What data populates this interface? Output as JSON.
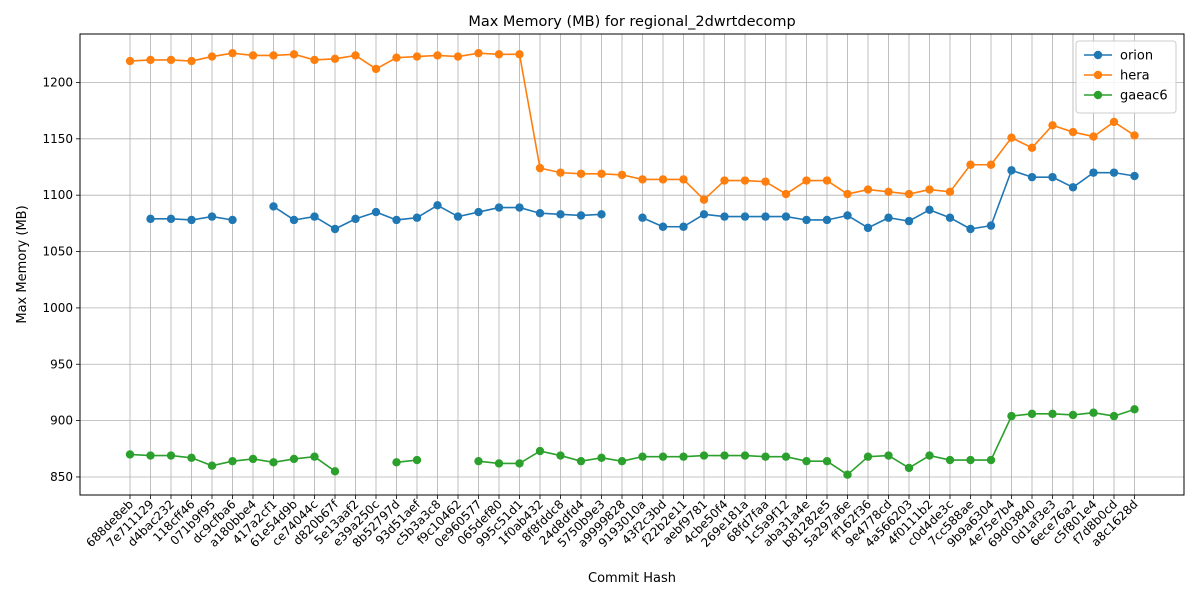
{
  "chart_data": {
    "type": "line",
    "title": "Max Memory (MB) for regional_2dwrtdecomp",
    "xlabel": "Commit Hash",
    "ylabel": "Max Memory (MB)",
    "ylim": [
      834,
      1243
    ],
    "yticks": [
      850,
      900,
      950,
      1000,
      1050,
      1100,
      1150,
      1200
    ],
    "grid": true,
    "legend_position": "top-right",
    "categories": [
      "688de8eb",
      "7e711129",
      "d4bac232",
      "118cff46",
      "071b9f95",
      "dc9cfba6",
      "a180bbe4",
      "417a2cf1",
      "61e54d9b",
      "ce74044c",
      "d820b67f",
      "5e13aaf2",
      "e39a250c",
      "8b52797d",
      "93d51aef",
      "c5b3a3c8",
      "f9c10462",
      "0e960577",
      "065def80",
      "995c51d1",
      "1f0ab432",
      "8f8fddc8",
      "24d8dfd4",
      "5750b9e3",
      "a9999828",
      "9193010a",
      "43f2c3bd",
      "f22b2e11",
      "aebf9781",
      "4cbe50f4",
      "269e181a",
      "68fd7faa",
      "1c5a9f12",
      "aba31a4e",
      "b81282e5",
      "5a297a6e",
      "ff162f36",
      "9e4778cd",
      "4a566203",
      "4f0111b2",
      "c0d4de3c",
      "7cc588ae",
      "9b9a6304",
      "4e75e7b4",
      "69d03840",
      "0d1af3e3",
      "6ece76a2",
      "c5f801e4",
      "f7d8b0cd",
      "a8c1628d"
    ],
    "series": [
      {
        "name": "orion",
        "color": "#1f77b4",
        "values": [
          null,
          1079,
          1079,
          1078,
          1081,
          1078,
          null,
          1090,
          1078,
          1081,
          1070,
          1079,
          1085,
          1078,
          1080,
          1091,
          1081,
          1085,
          1089,
          1089,
          1084,
          1083,
          1082,
          1083,
          null,
          1080,
          1072,
          1072,
          1083,
          1081,
          1081,
          1081,
          1081,
          1078,
          1078,
          1082,
          1071,
          1080,
          1077,
          1087,
          1080,
          1070,
          1073,
          1122,
          1116,
          1116,
          1107,
          1120,
          1120,
          1117
        ]
      },
      {
        "name": "hera",
        "color": "#ff7f0e",
        "values": [
          1219,
          1220,
          1220,
          1219,
          1223,
          1226,
          1224,
          1224,
          1225,
          1220,
          1221,
          1224,
          1212,
          1222,
          1223,
          1224,
          1223,
          1226,
          1225,
          1225,
          1124,
          1120,
          1119,
          1119,
          1118,
          1114,
          1114,
          1114,
          1096,
          1113,
          1113,
          1112,
          1101,
          1113,
          1113,
          1101,
          1105,
          1103,
          1101,
          1105,
          1103,
          1127,
          1127,
          1151,
          1142,
          1162,
          1156,
          1152,
          1165,
          1153
        ]
      },
      {
        "name": "gaeac6",
        "color": "#2ca02c",
        "values": [
          870,
          869,
          869,
          867,
          860,
          864,
          866,
          863,
          866,
          868,
          855,
          null,
          null,
          863,
          865,
          null,
          null,
          864,
          862,
          862,
          873,
          869,
          864,
          867,
          864,
          868,
          868,
          868,
          869,
          869,
          869,
          868,
          868,
          864,
          864,
          852,
          868,
          869,
          858,
          869,
          865,
          865,
          865,
          904,
          906,
          906,
          905,
          907,
          904,
          910
        ]
      }
    ]
  }
}
